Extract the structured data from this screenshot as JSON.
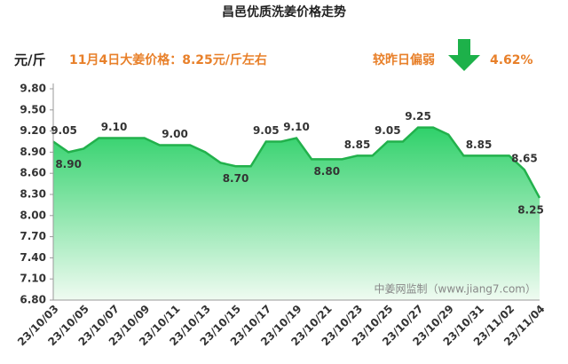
{
  "chart_data": {
    "type": "area",
    "title": "昌邑优质洗姜价格走势",
    "unit_label": "元/斤",
    "annotations": [
      "11月4日大姜价格：8.25元/斤左右",
      "较昨日偏弱",
      "4.62%"
    ],
    "watermark": "中姜网监制（www.jiang7.com）",
    "color": "#22b14c",
    "categories": [
      "23/10/03",
      null,
      "23/10/05",
      null,
      "23/10/07",
      null,
      "23/10/09",
      null,
      "23/10/11",
      null,
      "23/10/13",
      null,
      "23/10/15",
      null,
      "23/10/17",
      null,
      "23/10/19",
      null,
      "23/10/21",
      null,
      "23/10/23",
      null,
      "23/10/25",
      null,
      "23/10/27",
      null,
      "23/10/29",
      null,
      "23/10/31",
      null,
      "23/11/02",
      null,
      "23/11/04"
    ],
    "values": [
      9.05,
      8.9,
      8.95,
      9.1,
      9.1,
      9.1,
      9.1,
      9.0,
      9.0,
      9.0,
      8.9,
      8.75,
      8.7,
      8.7,
      9.05,
      9.05,
      9.1,
      8.8,
      8.8,
      8.8,
      8.85,
      8.85,
      9.05,
      9.05,
      9.25,
      9.25,
      9.15,
      8.85,
      8.85,
      8.85,
      8.85,
      8.65,
      8.25
    ],
    "value_labels": [
      "9.05",
      "8.90",
      null,
      null,
      "9.10",
      null,
      null,
      null,
      "9.00",
      null,
      null,
      null,
      "8.70",
      null,
      "9.05",
      null,
      "9.10",
      null,
      "8.80",
      null,
      "8.85",
      null,
      "9.05",
      null,
      "9.25",
      null,
      null,
      null,
      "8.85",
      null,
      null,
      "8.65",
      "8.25"
    ],
    "ylim": [
      6.8,
      9.8
    ],
    "yticks": [
      {
        "value": 6.8,
        "label": "6.80"
      },
      {
        "value": 7.1,
        "label": "7.10"
      },
      {
        "value": 7.4,
        "label": "7.40"
      },
      {
        "value": 7.7,
        "label": "7.70"
      },
      {
        "value": 8.0,
        "label": "8.00"
      },
      {
        "value": 8.3,
        "label": "8.30"
      },
      {
        "value": 8.6,
        "label": "8.60"
      },
      {
        "value": 8.9,
        "label": "8.90"
      },
      {
        "value": 9.2,
        "label": "9.20"
      },
      {
        "value": 9.5,
        "label": "9.50"
      },
      {
        "value": 9.8,
        "label": "9.80"
      }
    ],
    "grid": false
  }
}
